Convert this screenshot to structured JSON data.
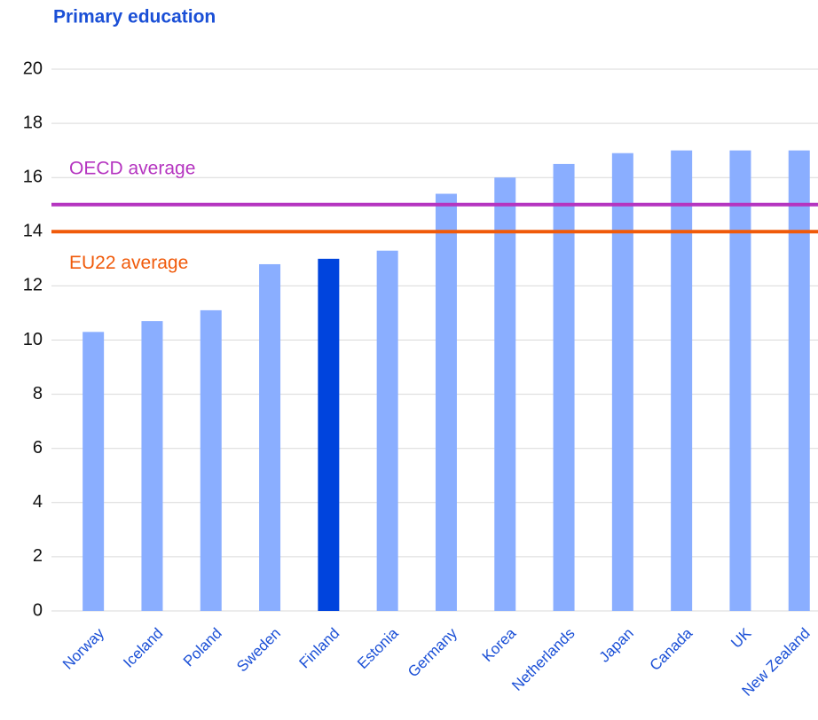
{
  "chart_data": {
    "type": "bar",
    "title": "Primary education",
    "categories": [
      "Norway",
      "Iceland",
      "Poland",
      "Sweden",
      "Finland",
      "Estonia",
      "Germany",
      "Korea",
      "Netherlands",
      "Japan",
      "Canada",
      "UK",
      "New Zealand"
    ],
    "values": [
      10.3,
      10.7,
      11.1,
      12.8,
      13.0,
      13.3,
      15.4,
      16.0,
      16.5,
      16.9,
      17.0,
      17.0,
      17.0
    ],
    "colors": [
      "#8aaeff",
      "#8aaeff",
      "#8aaeff",
      "#8aaeff",
      "#0044dd",
      "#8aaeff",
      "#8aaeff",
      "#8aaeff",
      "#8aaeff",
      "#8aaeff",
      "#8aaeff",
      "#8aaeff",
      "#8aaeff"
    ],
    "reference_lines": [
      {
        "label": "OECD average",
        "value": 15,
        "color": "#b535c0"
      },
      {
        "label": "EU22 average",
        "value": 14,
        "color": "#f05a0a"
      }
    ],
    "ylim": [
      0,
      20
    ],
    "yticks": [
      0,
      2,
      4,
      6,
      8,
      10,
      12,
      14,
      16,
      18,
      20
    ],
    "grid": true
  }
}
